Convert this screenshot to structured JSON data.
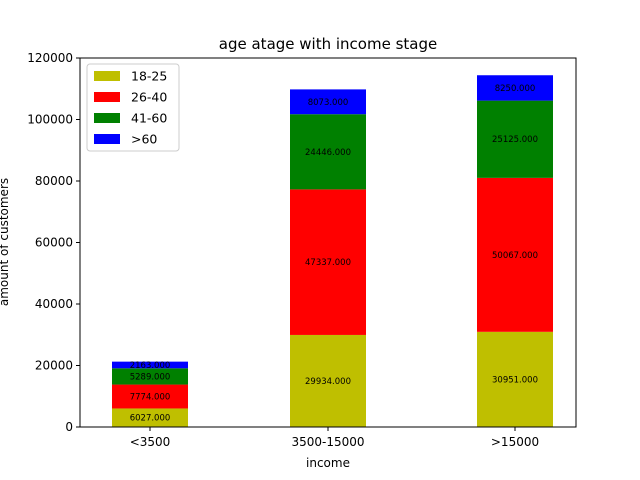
{
  "chart_data": {
    "type": "bar",
    "stacked": true,
    "title": "age atage with income stage",
    "xlabel": "income",
    "ylabel": "amount of customers",
    "categories": [
      "<3500",
      "3500-15000",
      ">15000"
    ],
    "series": [
      {
        "name": "18-25",
        "color": "#bfbf00",
        "values": [
          6027,
          29934,
          30951
        ],
        "labels": [
          "6027.000",
          "29934.000",
          "30951.000"
        ]
      },
      {
        "name": "26-40",
        "color": "#ff0000",
        "values": [
          7774,
          47337,
          50067
        ],
        "labels": [
          "7774.000",
          "47337.000",
          "50067.000"
        ]
      },
      {
        "name": "41-60",
        "color": "#008000",
        "values": [
          5289,
          24446,
          25125
        ],
        "labels": [
          "5289.000",
          "24446.000",
          "25125.000"
        ]
      },
      {
        "name": ">60",
        "color": "#0000ff",
        "values": [
          2163,
          8073,
          8250
        ],
        "labels": [
          "2163.000",
          "8073.000",
          "8250.000"
        ]
      }
    ],
    "ylim": [
      0,
      120000
    ],
    "yticks": [
      0,
      20000,
      40000,
      60000,
      80000,
      100000,
      120000
    ],
    "ytick_labels": [
      "0",
      "20000",
      "40000",
      "60000",
      "80000",
      "100000",
      "120000"
    ],
    "grid": false,
    "legend_position": "top-left"
  }
}
